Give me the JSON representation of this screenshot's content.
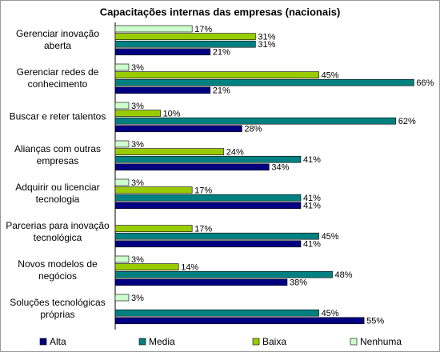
{
  "chart_data": {
    "type": "hbar",
    "title": "Capacitações internas das empresas (nacionais)",
    "categories": [
      "Gerenciar inovação aberta",
      "Gerenciar redes de conhecimento",
      "Buscar e reter talentos",
      "Alianças com outras empresas",
      "Adquirir ou licenciar tecnologia",
      "Parcerias para inovação tecnológica",
      "Novos modelos de negócios",
      "Soluções tecnológicas próprias"
    ],
    "series": [
      {
        "name": "Alta",
        "color": "#000080",
        "values": [
          21,
          21,
          28,
          34,
          41,
          41,
          38,
          55
        ],
        "value_labels": [
          "21%",
          "21%",
          "28%",
          "34%",
          "41%",
          "41%",
          "38%",
          "55%"
        ]
      },
      {
        "name": "Media",
        "color": "#008080",
        "values": [
          31,
          66,
          62,
          41,
          41,
          45,
          48,
          45
        ],
        "value_labels": [
          "31%",
          "66%",
          "62%",
          "41%",
          "41%",
          "45%",
          "48%",
          "45%"
        ]
      },
      {
        "name": "Baixa",
        "color": "#99cc00",
        "values": [
          31,
          45,
          10,
          24,
          17,
          17,
          14,
          null
        ],
        "value_labels": [
          "31%",
          "45%",
          "10%",
          "24%",
          "17%",
          "17%",
          "14%",
          null
        ]
      },
      {
        "name": "Nenhuma",
        "color": "#ccffcc",
        "values": [
          17,
          3,
          3,
          3,
          3,
          null,
          3,
          3
        ],
        "value_labels": [
          "17%",
          "3%",
          "3%",
          "3%",
          "3%",
          null,
          "3%",
          "3%"
        ]
      }
    ],
    "xlim": [
      0,
      70
    ],
    "legend": "bottom"
  }
}
